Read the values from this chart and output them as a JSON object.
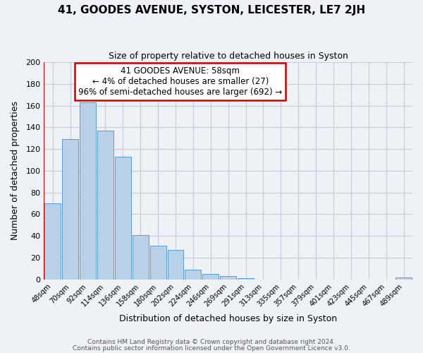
{
  "title": "41, GOODES AVENUE, SYSTON, LEICESTER, LE7 2JH",
  "subtitle": "Size of property relative to detached houses in Syston",
  "xlabel": "Distribution of detached houses by size in Syston",
  "ylabel": "Number of detached properties",
  "bar_labels": [
    "48sqm",
    "70sqm",
    "92sqm",
    "114sqm",
    "136sqm",
    "158sqm",
    "180sqm",
    "202sqm",
    "224sqm",
    "246sqm",
    "269sqm",
    "291sqm",
    "313sqm",
    "335sqm",
    "357sqm",
    "379sqm",
    "401sqm",
    "423sqm",
    "445sqm",
    "467sqm",
    "489sqm"
  ],
  "bar_values": [
    70,
    129,
    163,
    137,
    113,
    41,
    31,
    27,
    9,
    5,
    3,
    1,
    0,
    0,
    0,
    0,
    0,
    0,
    0,
    0,
    2
  ],
  "bar_color": "#b8d0e8",
  "bar_edgecolor": "#5b9bd5",
  "background_color": "#eef2f7",
  "grid_color": "#c5cdd8",
  "annotation_text_line1": "41 GOODES AVENUE: 58sqm",
  "annotation_text_line2": "← 4% of detached houses are smaller (27)",
  "annotation_text_line3": "96% of semi-detached houses are larger (692) →",
  "annotation_box_color": "#ffffff",
  "annotation_box_edgecolor": "#cc0000",
  "red_line_color": "#cc0000",
  "ylim": [
    0,
    200
  ],
  "yticks": [
    0,
    20,
    40,
    60,
    80,
    100,
    120,
    140,
    160,
    180,
    200
  ],
  "title_fontsize": 11,
  "subtitle_fontsize": 9,
  "footer_line1": "Contains HM Land Registry data © Crown copyright and database right 2024.",
  "footer_line2": "Contains public sector information licensed under the Open Government Licence v3.0."
}
